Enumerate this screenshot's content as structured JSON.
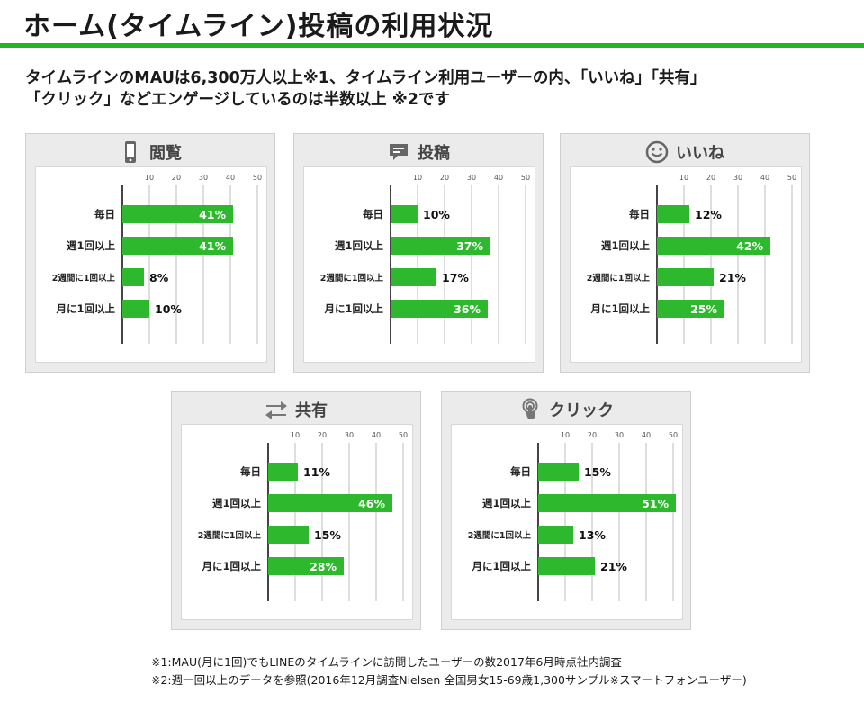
{
  "page": {
    "title": "ホーム(タイムライン)投稿の利用状況",
    "subtitle_line1": "タイムラインのMAUは6,300万人以上※1、タイムライン利用ユーザーの内、「いいね」「共有」",
    "subtitle_line2": "「クリック」などエンゲージしているのは半数以上 ※2です",
    "note1": "※1:MAU(月に1回)でもLINEのタイムラインに訪問したユーザーの数2017年6月時点社内調査",
    "note2": "※2:週一回以上のデータを参照(2016年12月調査Nielsen 全国男女15-69歳1,300サンプル※スマートフォンユーザー)",
    "accent_color": "#22b422",
    "bar_color": "#2db82d"
  },
  "chart_data": [
    {
      "type": "bar",
      "orientation": "horizontal",
      "title": "閲覧",
      "icon": "smartphone-icon",
      "categories": [
        "毎日",
        "週1回以上",
        "2週間に1回以上",
        "月に1回以上"
      ],
      "values": [
        41,
        41,
        8,
        10
      ],
      "value_labels": [
        "41%",
        "41%",
        "8%",
        "10%"
      ],
      "ticks": [
        "10",
        "20",
        "30",
        "40",
        "50"
      ],
      "xlim": [
        0,
        50
      ],
      "grid": true
    },
    {
      "type": "bar",
      "orientation": "horizontal",
      "title": "投稿",
      "icon": "speech-bubble-icon",
      "categories": [
        "毎日",
        "週1回以上",
        "2週間に1回以上",
        "月に1回以上"
      ],
      "values": [
        10,
        37,
        17,
        36
      ],
      "value_labels": [
        "10%",
        "37%",
        "17%",
        "36%"
      ],
      "ticks": [
        "10",
        "20",
        "30",
        "40",
        "50"
      ],
      "xlim": [
        0,
        50
      ],
      "grid": true
    },
    {
      "type": "bar",
      "orientation": "horizontal",
      "title": "いいね",
      "icon": "smiley-icon",
      "categories": [
        "毎日",
        "週1回以上",
        "2週間に1回以上",
        "月に1回以上"
      ],
      "values": [
        12,
        42,
        21,
        25
      ],
      "value_labels": [
        "12%",
        "42%",
        "21%",
        "25%"
      ],
      "ticks": [
        "10",
        "20",
        "30",
        "40",
        "50"
      ],
      "xlim": [
        0,
        50
      ],
      "grid": true
    },
    {
      "type": "bar",
      "orientation": "horizontal",
      "title": "共有",
      "icon": "share-arrows-icon",
      "categories": [
        "毎日",
        "週1回以上",
        "2週間に1回以上",
        "月に1回以上"
      ],
      "values": [
        11,
        46,
        15,
        28
      ],
      "value_labels": [
        "11%",
        "46%",
        "15%",
        "28%"
      ],
      "ticks": [
        "10",
        "20",
        "30",
        "40",
        "50"
      ],
      "xlim": [
        0,
        50
      ],
      "grid": true
    },
    {
      "type": "bar",
      "orientation": "horizontal",
      "title": "クリック",
      "icon": "tap-finger-icon",
      "categories": [
        "毎日",
        "週1回以上",
        "2週間に1回以上",
        "月に1回以上"
      ],
      "values": [
        15,
        51,
        13,
        21
      ],
      "value_labels": [
        "15%",
        "51%",
        "13%",
        "21%"
      ],
      "ticks": [
        "10",
        "20",
        "30",
        "40",
        "50"
      ],
      "xlim": [
        0,
        50
      ],
      "grid": true
    }
  ]
}
